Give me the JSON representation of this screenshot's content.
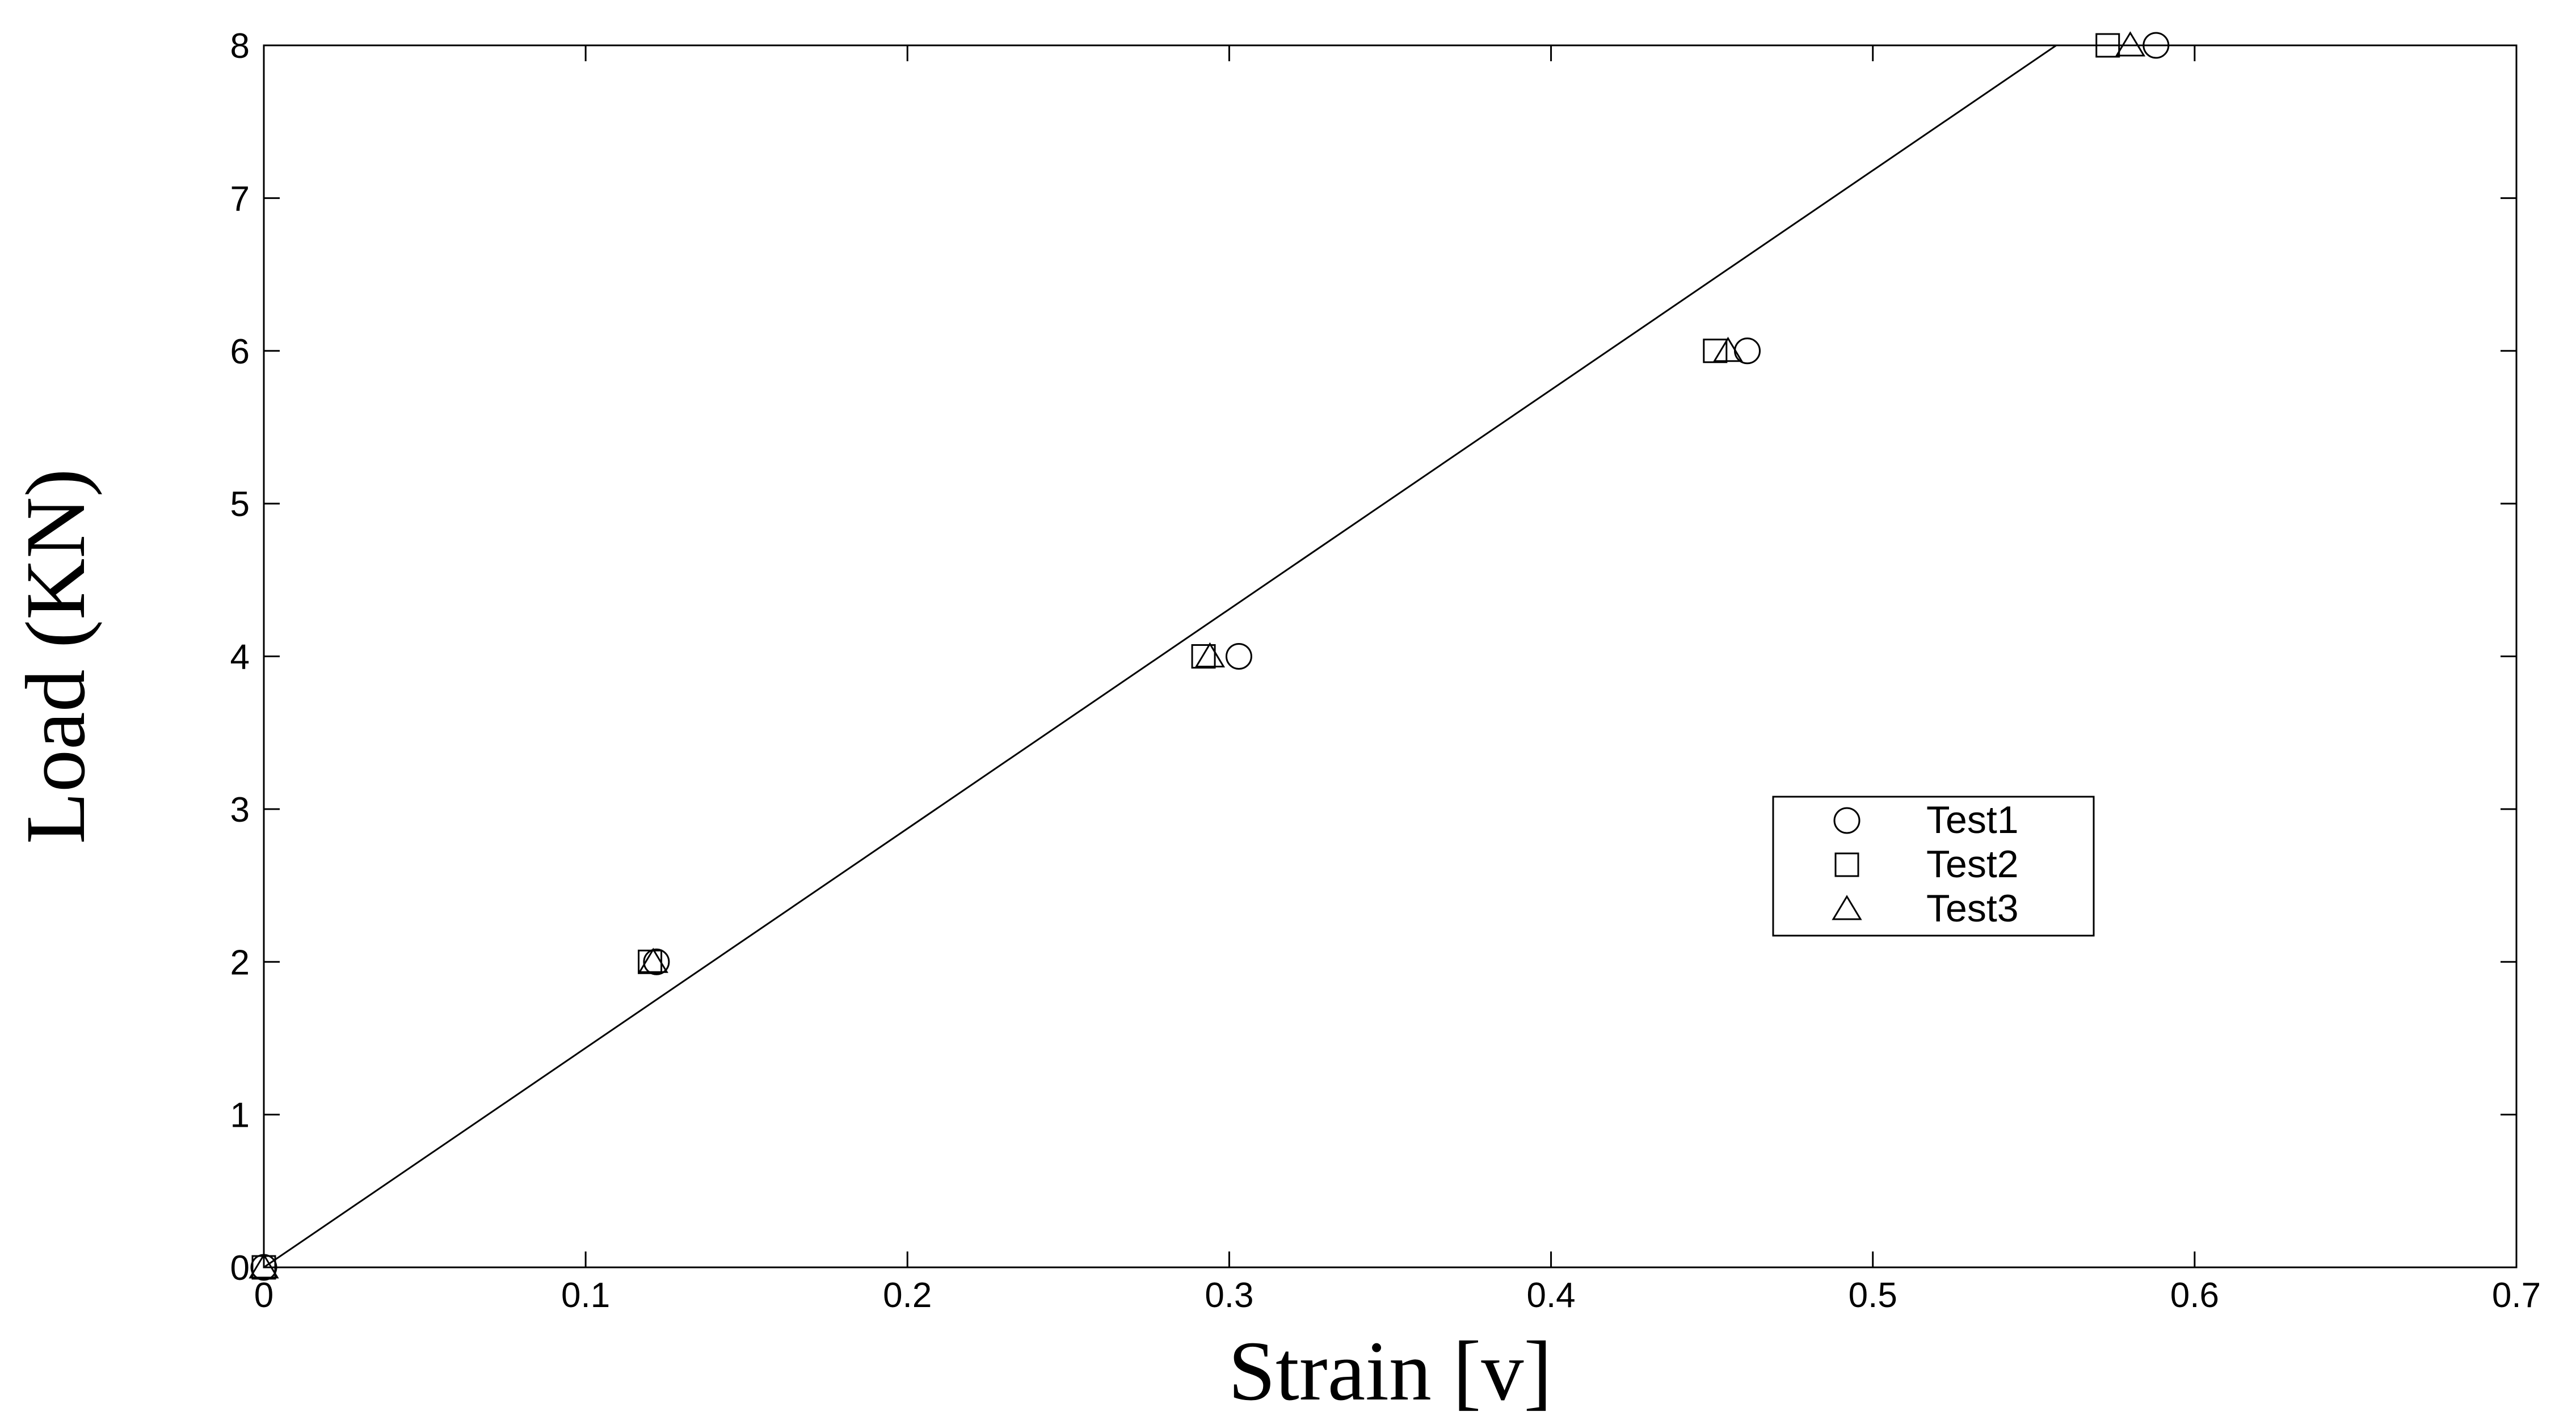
{
  "chart_data": {
    "type": "scatter",
    "title": "",
    "xlabel": "Strain [v]",
    "ylabel": "Load (KN)",
    "xlim": [
      0,
      0.7
    ],
    "ylim": [
      0,
      8
    ],
    "x_ticks": [
      "0",
      "0.1",
      "0.2",
      "0.3",
      "0.4",
      "0.5",
      "0.6",
      "0.7"
    ],
    "y_ticks": [
      "0",
      "1",
      "2",
      "3",
      "4",
      "5",
      "6",
      "7",
      "8"
    ],
    "grid": false,
    "legend_position": "right-center",
    "series": [
      {
        "name": "Test1",
        "marker": "circle",
        "x": [
          0,
          0.122,
          0.303,
          0.461,
          0.588
        ],
        "y": [
          0,
          2,
          4,
          6,
          8
        ]
      },
      {
        "name": "Test2",
        "marker": "square",
        "x": [
          0,
          0.12,
          0.292,
          0.451,
          0.573
        ],
        "y": [
          0,
          2,
          4,
          6,
          8
        ]
      },
      {
        "name": "Test3",
        "marker": "triangle",
        "x": [
          0,
          0.121,
          0.294,
          0.455,
          0.58
        ],
        "y": [
          0,
          2,
          4,
          6,
          8
        ]
      }
    ],
    "fit_line": {
      "x": [
        0,
        0.557
      ],
      "y": [
        0,
        8
      ]
    },
    "colors": {
      "foreground": "#000000",
      "background": "#ffffff"
    }
  }
}
